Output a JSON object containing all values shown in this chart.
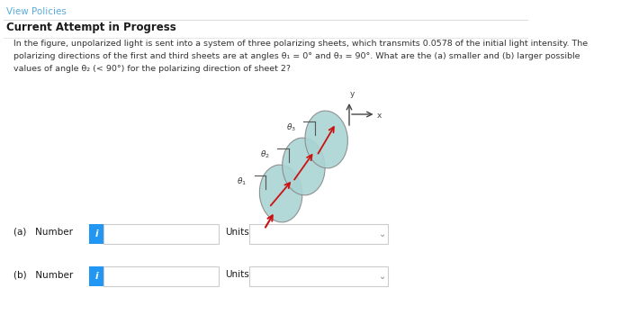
{
  "view_policies_text": "View Policies",
  "current_attempt_text": "Current Attempt in Progress",
  "problem_text_line1": "In the figure, unpolarized light is sent into a system of three polarizing sheets, which transmits 0.0578 of the initial light intensity. The",
  "problem_text_line2": "polarizing directions of the first and third sheets are at angles θ₁ = 0° and θ₃ = 90°. What are the (a) smaller and (b) larger possible",
  "problem_text_line3": "values of angle θ₂ (< 90°) for the polarizing direction of sheet 2?",
  "label_a": "(a)   Number",
  "label_b": "(b)   Number",
  "units_label": "Units",
  "background_color": "#ffffff",
  "link_color": "#5aabdd",
  "bold_text_color": "#1a1a1a",
  "body_text_color": "#333333",
  "input_box_color": "#ffffff",
  "input_border_color": "#cccccc",
  "info_button_color": "#2196F3",
  "divider_color": "#dddddd",
  "ellipse_face_color": "#aad4d4",
  "ellipse_edge_color": "#888888",
  "arrow_color": "#cc1111",
  "tick_color": "#555555",
  "axis_color": "#444444"
}
